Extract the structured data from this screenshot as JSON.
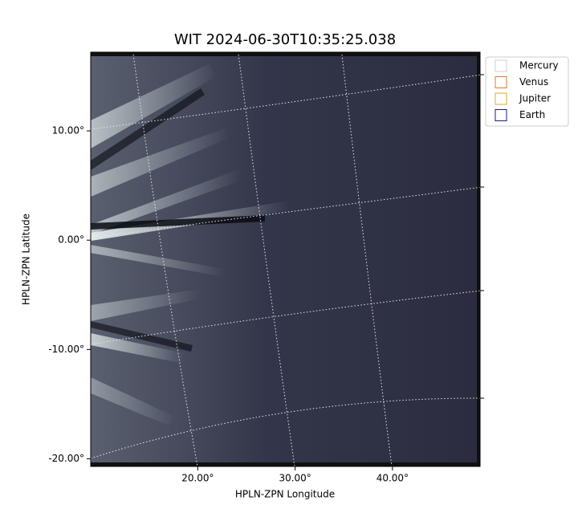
{
  "chart_data": {
    "type": "image",
    "title": "WIT 2024-06-30T10:35:25.038",
    "xlabel": "HPLN-ZPN Longitude",
    "ylabel": "HPLN-ZPN Latitude",
    "xlim": [
      9,
      49
    ],
    "ylim": [
      -20.7,
      17.2
    ],
    "xticks": [
      {
        "value": 20,
        "label": "20.00°"
      },
      {
        "value": 30,
        "label": "30.00°"
      },
      {
        "value": 40,
        "label": "40.00°"
      }
    ],
    "yticks": [
      {
        "value": 10,
        "label": "10.00°"
      },
      {
        "value": 0,
        "label": "0.00°"
      },
      {
        "value": -10,
        "label": "-10.00°"
      },
      {
        "value": -20,
        "label": "-20.00°"
      }
    ],
    "grid": true,
    "legend_position": "upper right",
    "legend": [
      {
        "name": "Mercury",
        "color": "#d0d0d0"
      },
      {
        "name": "Venus",
        "color": "#e07a30"
      },
      {
        "name": "Jupiter",
        "color": "#e0a820"
      },
      {
        "name": "Earth",
        "color": "#1a1a80"
      }
    ]
  }
}
